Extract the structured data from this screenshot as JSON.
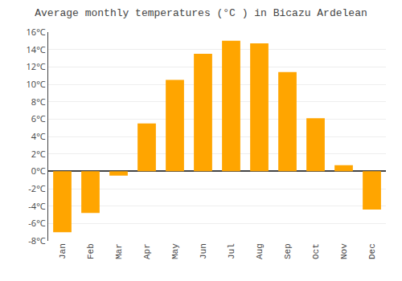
{
  "chart_data": {
    "type": "bar",
    "title": "Average monthly temperatures (°C ) in Bicazu Ardelean",
    "categories": [
      "Jan",
      "Feb",
      "Mar",
      "Apr",
      "May",
      "Jun",
      "Jul",
      "Aug",
      "Sep",
      "Oct",
      "Nov",
      "Dec"
    ],
    "values": [
      -7.0,
      -4.8,
      -0.5,
      5.5,
      10.5,
      13.5,
      15.0,
      14.7,
      11.4,
      6.1,
      0.7,
      -4.4
    ],
    "color": "#FFA500",
    "ylim": [
      -8,
      16
    ],
    "yticks": [
      {
        "value": -8,
        "label": "-8°C"
      },
      {
        "value": -6,
        "label": "-6°C"
      },
      {
        "value": -4,
        "label": "-4°C"
      },
      {
        "value": -2,
        "label": "-2°C"
      },
      {
        "value": 0,
        "label": "0°C"
      },
      {
        "value": 2,
        "label": "2°C"
      },
      {
        "value": 4,
        "label": "4°C"
      },
      {
        "value": 6,
        "label": "6°C"
      },
      {
        "value": 8,
        "label": "8°C"
      },
      {
        "value": 10,
        "label": "10°C"
      },
      {
        "value": 12,
        "label": "12°C"
      },
      {
        "value": 14,
        "label": "14°C"
      },
      {
        "value": 16,
        "label": "16°C"
      }
    ],
    "grid": true
  }
}
